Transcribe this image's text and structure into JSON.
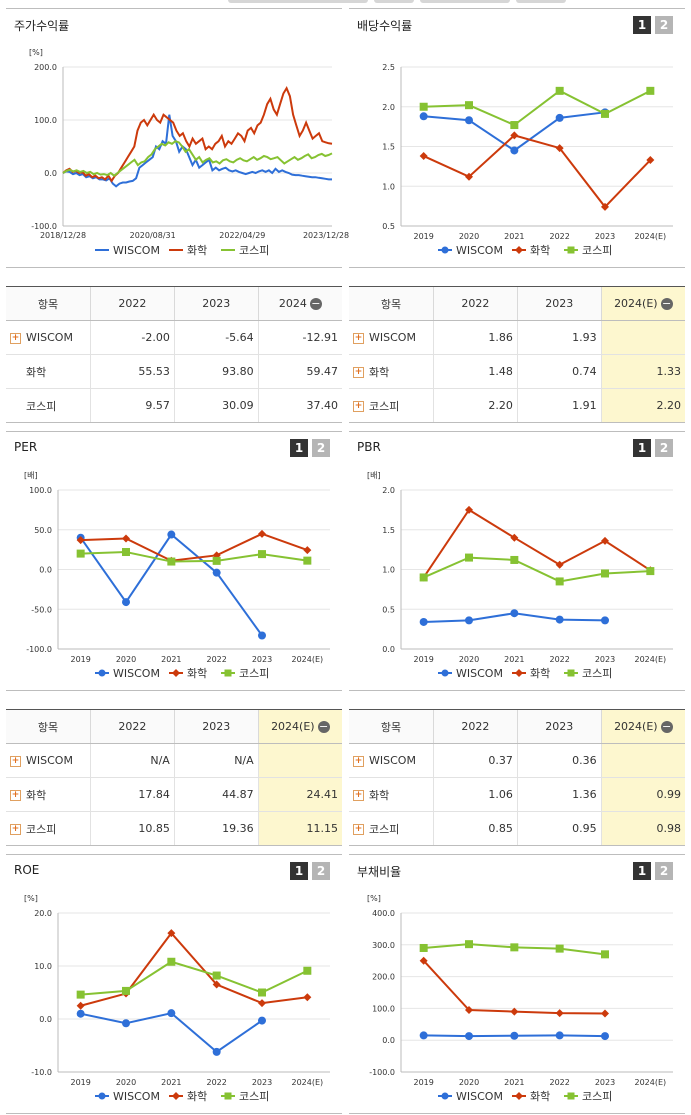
{
  "legend": {
    "wiscom": "WISCOM",
    "chem": "화학",
    "kospi": "코스피"
  },
  "colors": {
    "wiscom": "#2e6fd8",
    "chem": "#cc3a0c",
    "kospi": "#86c232"
  },
  "pages": [
    "1",
    "2"
  ],
  "charts": {
    "returns": {
      "title": "주가수익률",
      "unit": "[%]",
      "yticks": [
        "200.0",
        "100.0",
        "0.0",
        "-100.0"
      ],
      "ylim": [
        -100,
        200
      ],
      "xticks": [
        "2018/12/28",
        "2020/08/31",
        "2022/04/29",
        "2023/12/28"
      ],
      "wiscom": [
        0,
        3,
        2,
        -2,
        0,
        -4,
        -2,
        -8,
        -6,
        -10,
        -8,
        -12,
        -12,
        -14,
        -10,
        -20,
        -25,
        -20,
        -18,
        -18,
        -16,
        -15,
        -10,
        10,
        15,
        20,
        25,
        30,
        50,
        45,
        60,
        55,
        110,
        70,
        60,
        40,
        50,
        45,
        30,
        15,
        25,
        10,
        15,
        20,
        25,
        5,
        10,
        5,
        8,
        10,
        5,
        3,
        5,
        2,
        0,
        -2,
        0,
        2,
        0,
        3,
        5,
        2,
        5,
        0,
        8,
        2,
        5,
        2,
        0,
        -3,
        -4,
        -4,
        -5,
        -6,
        -7,
        -8,
        -8,
        -9,
        -10,
        -11,
        -12,
        -12
      ],
      "chem": [
        0,
        5,
        8,
        2,
        4,
        0,
        2,
        -5,
        -2,
        -8,
        -5,
        -10,
        -8,
        -12,
        -5,
        -15,
        -5,
        0,
        10,
        20,
        30,
        40,
        50,
        80,
        95,
        100,
        90,
        100,
        110,
        100,
        95,
        110,
        105,
        100,
        95,
        80,
        70,
        75,
        60,
        50,
        65,
        55,
        60,
        65,
        45,
        50,
        45,
        55,
        60,
        70,
        50,
        60,
        55,
        65,
        75,
        70,
        60,
        80,
        85,
        75,
        90,
        95,
        110,
        130,
        140,
        120,
        110,
        130,
        150,
        160,
        145,
        110,
        90,
        70,
        80,
        95,
        80,
        65,
        70,
        75,
        60,
        58,
        56,
        55
      ],
      "kospi": [
        0,
        4,
        6,
        3,
        5,
        2,
        4,
        0,
        2,
        -2,
        0,
        -3,
        -2,
        -4,
        0,
        -5,
        0,
        5,
        10,
        15,
        20,
        25,
        15,
        20,
        22,
        30,
        35,
        45,
        50,
        55,
        52,
        58,
        55,
        60,
        58,
        50,
        40,
        45,
        35,
        25,
        30,
        20,
        25,
        28,
        20,
        22,
        18,
        24,
        26,
        22,
        20,
        25,
        28,
        24,
        22,
        26,
        30,
        25,
        28,
        32,
        30,
        26,
        28,
        30,
        24,
        18,
        22,
        26,
        30,
        25,
        28,
        32,
        35,
        28,
        30,
        34,
        36,
        32,
        34,
        37
      ]
    },
    "dividend": {
      "title": "배당수익률",
      "unit": "",
      "yticks": [
        "2.5",
        "2.0",
        "1.5",
        "1.0",
        "0.5"
      ],
      "ylim": [
        0.5,
        2.5
      ],
      "categories": [
        "2019",
        "2020",
        "2021",
        "2022",
        "2023",
        "2024(E)"
      ],
      "wiscom": [
        1.88,
        1.83,
        1.45,
        1.86,
        1.93,
        null
      ],
      "chem": [
        1.38,
        1.12,
        1.64,
        1.48,
        0.74,
        1.33
      ],
      "kospi": [
        2.0,
        2.02,
        1.77,
        2.2,
        1.91,
        2.2
      ]
    },
    "per": {
      "title": "PER",
      "unit": "[배]",
      "yticks": [
        "100.0",
        "50.0",
        "0.0",
        "-50.0",
        "-100.0"
      ],
      "ylim": [
        -100,
        100
      ],
      "categories": [
        "2019",
        "2020",
        "2021",
        "2022",
        "2023",
        "2024(E)"
      ],
      "wiscom": [
        40,
        -41,
        44,
        -4,
        -83,
        null
      ],
      "chem": [
        37,
        39,
        11,
        17.84,
        44.87,
        24.41
      ],
      "kospi": [
        20,
        22,
        10,
        10.85,
        19.36,
        11.15
      ]
    },
    "pbr": {
      "title": "PBR",
      "unit": "[배]",
      "yticks": [
        "2.0",
        "1.5",
        "1.0",
        "0.5",
        "0.0"
      ],
      "ylim": [
        0,
        2
      ],
      "categories": [
        "2019",
        "2020",
        "2021",
        "2022",
        "2023",
        "2024(E)"
      ],
      "wiscom": [
        0.34,
        0.36,
        0.45,
        0.37,
        0.36,
        null
      ],
      "chem": [
        0.9,
        1.75,
        1.4,
        1.06,
        1.36,
        0.99
      ],
      "kospi": [
        0.9,
        1.15,
        1.12,
        0.85,
        0.95,
        0.98
      ]
    },
    "roe": {
      "title": "ROE",
      "unit": "[%]",
      "yticks": [
        "20.0",
        "10.0",
        "0.0",
        "-10.0"
      ],
      "ylim": [
        -10,
        20
      ],
      "categories": [
        "2019",
        "2020",
        "2021",
        "2022",
        "2023",
        "2024(E)"
      ],
      "wiscom": [
        1.0,
        -0.8,
        1.1,
        -6.2,
        -0.3,
        null
      ],
      "chem": [
        2.5,
        4.8,
        16.2,
        6.5,
        3.0,
        4.1
      ],
      "kospi": [
        4.6,
        5.3,
        10.8,
        8.2,
        5.0,
        9.1
      ]
    },
    "debt": {
      "title": "부채비율",
      "unit": "[%]",
      "yticks": [
        "400.0",
        "300.0",
        "200.0",
        "100.0",
        "0.0",
        "-100.0"
      ],
      "ylim": [
        -100,
        400
      ],
      "categories": [
        "2019",
        "2020",
        "2021",
        "2022",
        "2023",
        "2024(E)"
      ],
      "wiscom": [
        15,
        13,
        14,
        15,
        13,
        null
      ],
      "chem": [
        250,
        95,
        90,
        85,
        84,
        null
      ],
      "kospi": [
        290,
        302,
        292,
        288,
        270,
        null
      ]
    }
  },
  "tables": {
    "returns": {
      "header": [
        "항목",
        "2022",
        "2023",
        "2024"
      ],
      "estimate": false,
      "rows": [
        {
          "name": "WISCOM",
          "plus": true,
          "v": [
            "-2.00",
            "-5.64",
            "-12.91"
          ]
        },
        {
          "name": "화학",
          "plus": false,
          "v": [
            "55.53",
            "93.80",
            "59.47"
          ]
        },
        {
          "name": "코스피",
          "plus": false,
          "v": [
            "9.57",
            "30.09",
            "37.40"
          ]
        }
      ]
    },
    "dividend": {
      "header": [
        "항목",
        "2022",
        "2023",
        "2024(E)"
      ],
      "estimate": true,
      "rows": [
        {
          "name": "WISCOM",
          "plus": true,
          "v": [
            "1.86",
            "1.93",
            ""
          ]
        },
        {
          "name": "화학",
          "plus": true,
          "v": [
            "1.48",
            "0.74",
            "1.33"
          ]
        },
        {
          "name": "코스피",
          "plus": true,
          "v": [
            "2.20",
            "1.91",
            "2.20"
          ]
        }
      ]
    },
    "per": {
      "header": [
        "항목",
        "2022",
        "2023",
        "2024(E)"
      ],
      "estimate": true,
      "rows": [
        {
          "name": "WISCOM",
          "plus": true,
          "v": [
            "N/A",
            "N/A",
            ""
          ]
        },
        {
          "name": "화학",
          "plus": true,
          "v": [
            "17.84",
            "44.87",
            "24.41"
          ]
        },
        {
          "name": "코스피",
          "plus": true,
          "v": [
            "10.85",
            "19.36",
            "11.15"
          ]
        }
      ]
    },
    "pbr": {
      "header": [
        "항목",
        "2022",
        "2023",
        "2024(E)"
      ],
      "estimate": true,
      "rows": [
        {
          "name": "WISCOM",
          "plus": true,
          "v": [
            "0.37",
            "0.36",
            ""
          ]
        },
        {
          "name": "화학",
          "plus": true,
          "v": [
            "1.06",
            "1.36",
            "0.99"
          ]
        },
        {
          "name": "코스피",
          "plus": true,
          "v": [
            "0.85",
            "0.95",
            "0.98"
          ]
        }
      ]
    }
  }
}
